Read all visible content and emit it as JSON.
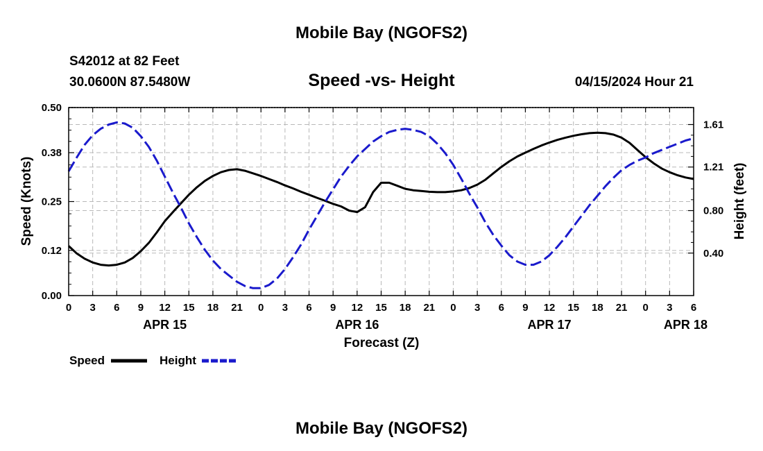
{
  "page": {
    "title": "Mobile Bay (NGOFS2)",
    "footer_title": "Mobile Bay (NGOFS2)",
    "station_line": "S42012 at 82 Feet",
    "coords_line": "30.0600N  87.5480W",
    "datetime_line": "04/15/2024 Hour 21"
  },
  "chart_data": {
    "type": "line",
    "title": "Speed -vs- Height",
    "xlabel": "Forecast (Z)",
    "ylabel_left": "Speed (Knots)",
    "ylabel_right": "Height (feet)",
    "x_hours_range": [
      0,
      78
    ],
    "x_ticks": [
      {
        "h": 0,
        "label": "0"
      },
      {
        "h": 3,
        "label": "3"
      },
      {
        "h": 6,
        "label": "6"
      },
      {
        "h": 9,
        "label": "9"
      },
      {
        "h": 12,
        "label": "12"
      },
      {
        "h": 15,
        "label": "15"
      },
      {
        "h": 18,
        "label": "18"
      },
      {
        "h": 21,
        "label": "21"
      },
      {
        "h": 24,
        "label": "0"
      },
      {
        "h": 27,
        "label": "3"
      },
      {
        "h": 30,
        "label": "6"
      },
      {
        "h": 33,
        "label": "9"
      },
      {
        "h": 36,
        "label": "12"
      },
      {
        "h": 39,
        "label": "15"
      },
      {
        "h": 42,
        "label": "18"
      },
      {
        "h": 45,
        "label": "21"
      },
      {
        "h": 48,
        "label": "0"
      },
      {
        "h": 51,
        "label": "3"
      },
      {
        "h": 54,
        "label": "6"
      },
      {
        "h": 57,
        "label": "9"
      },
      {
        "h": 60,
        "label": "12"
      },
      {
        "h": 63,
        "label": "15"
      },
      {
        "h": 66,
        "label": "18"
      },
      {
        "h": 69,
        "label": "21"
      },
      {
        "h": 72,
        "label": "0"
      },
      {
        "h": 75,
        "label": "3"
      },
      {
        "h": 78,
        "label": "6"
      }
    ],
    "date_labels": [
      {
        "h": 12,
        "label": "APR 15"
      },
      {
        "h": 36,
        "label": "APR 16"
      },
      {
        "h": 60,
        "label": "APR 17"
      },
      {
        "h": 77,
        "label": "APR 18"
      }
    ],
    "y_left": {
      "range": [
        0,
        0.5
      ],
      "ticks": [
        0.0,
        0.12,
        0.25,
        0.38,
        0.5
      ],
      "tick_labels": [
        "0.00",
        "0.12",
        "0.25",
        "0.38",
        "0.50"
      ]
    },
    "y_right": {
      "range": [
        0.0,
        1.77
      ],
      "ticks": [
        0.4,
        0.8,
        1.21,
        1.61
      ],
      "tick_labels": [
        "0.40",
        "0.80",
        "1.21",
        "1.61"
      ]
    },
    "grid": true,
    "series": [
      {
        "name": "Speed",
        "color": "#000000",
        "dash": "solid",
        "axis": "left",
        "points": [
          [
            0,
            0.132
          ],
          [
            1,
            0.112
          ],
          [
            2,
            0.098
          ],
          [
            3,
            0.088
          ],
          [
            4,
            0.082
          ],
          [
            5,
            0.08
          ],
          [
            6,
            0.082
          ],
          [
            7,
            0.088
          ],
          [
            8,
            0.1
          ],
          [
            9,
            0.118
          ],
          [
            10,
            0.14
          ],
          [
            11,
            0.168
          ],
          [
            12,
            0.198
          ],
          [
            13,
            0.222
          ],
          [
            14,
            0.245
          ],
          [
            15,
            0.268
          ],
          [
            16,
            0.288
          ],
          [
            17,
            0.305
          ],
          [
            18,
            0.318
          ],
          [
            19,
            0.328
          ],
          [
            20,
            0.334
          ],
          [
            21,
            0.336
          ],
          [
            22,
            0.332
          ],
          [
            23,
            0.325
          ],
          [
            24,
            0.318
          ],
          [
            25,
            0.31
          ],
          [
            26,
            0.302
          ],
          [
            27,
            0.293
          ],
          [
            28,
            0.285
          ],
          [
            29,
            0.276
          ],
          [
            30,
            0.268
          ],
          [
            31,
            0.26
          ],
          [
            32,
            0.252
          ],
          [
            33,
            0.244
          ],
          [
            34,
            0.237
          ],
          [
            35,
            0.226
          ],
          [
            36,
            0.222
          ],
          [
            37,
            0.235
          ],
          [
            38,
            0.275
          ],
          [
            39,
            0.3
          ],
          [
            40,
            0.3
          ],
          [
            41,
            0.292
          ],
          [
            42,
            0.284
          ],
          [
            43,
            0.28
          ],
          [
            44,
            0.278
          ],
          [
            45,
            0.276
          ],
          [
            46,
            0.275
          ],
          [
            47,
            0.275
          ],
          [
            48,
            0.277
          ],
          [
            49,
            0.28
          ],
          [
            50,
            0.286
          ],
          [
            51,
            0.295
          ],
          [
            52,
            0.308
          ],
          [
            53,
            0.325
          ],
          [
            54,
            0.342
          ],
          [
            55,
            0.357
          ],
          [
            56,
            0.37
          ],
          [
            57,
            0.38
          ],
          [
            58,
            0.39
          ],
          [
            59,
            0.399
          ],
          [
            60,
            0.407
          ],
          [
            61,
            0.414
          ],
          [
            62,
            0.42
          ],
          [
            63,
            0.425
          ],
          [
            64,
            0.429
          ],
          [
            65,
            0.432
          ],
          [
            66,
            0.433
          ],
          [
            67,
            0.432
          ],
          [
            68,
            0.428
          ],
          [
            69,
            0.42
          ],
          [
            70,
            0.406
          ],
          [
            71,
            0.387
          ],
          [
            72,
            0.368
          ],
          [
            73,
            0.352
          ],
          [
            74,
            0.338
          ],
          [
            75,
            0.328
          ],
          [
            76,
            0.32
          ],
          [
            77,
            0.314
          ],
          [
            78,
            0.31
          ]
        ]
      },
      {
        "name": "Height",
        "color": "#1a1acc",
        "dash": "dashed",
        "axis": "right",
        "points": [
          [
            0,
            1.17
          ],
          [
            1,
            1.3
          ],
          [
            2,
            1.42
          ],
          [
            3,
            1.51
          ],
          [
            4,
            1.57
          ],
          [
            5,
            1.61
          ],
          [
            6,
            1.63
          ],
          [
            7,
            1.62
          ],
          [
            8,
            1.58
          ],
          [
            9,
            1.5
          ],
          [
            10,
            1.4
          ],
          [
            11,
            1.27
          ],
          [
            12,
            1.12
          ],
          [
            13,
            0.97
          ],
          [
            14,
            0.83
          ],
          [
            15,
            0.68
          ],
          [
            16,
            0.55
          ],
          [
            17,
            0.43
          ],
          [
            18,
            0.33
          ],
          [
            19,
            0.25
          ],
          [
            20,
            0.19
          ],
          [
            21,
            0.13
          ],
          [
            22,
            0.09
          ],
          [
            23,
            0.07
          ],
          [
            24,
            0.07
          ],
          [
            25,
            0.1
          ],
          [
            26,
            0.16
          ],
          [
            27,
            0.25
          ],
          [
            28,
            0.36
          ],
          [
            29,
            0.48
          ],
          [
            30,
            0.62
          ],
          [
            31,
            0.75
          ],
          [
            32,
            0.88
          ],
          [
            33,
            1.0
          ],
          [
            34,
            1.12
          ],
          [
            35,
            1.22
          ],
          [
            36,
            1.31
          ],
          [
            37,
            1.38
          ],
          [
            38,
            1.45
          ],
          [
            39,
            1.5
          ],
          [
            40,
            1.54
          ],
          [
            41,
            1.56
          ],
          [
            42,
            1.57
          ],
          [
            43,
            1.56
          ],
          [
            44,
            1.54
          ],
          [
            45,
            1.5
          ],
          [
            46,
            1.43
          ],
          [
            47,
            1.34
          ],
          [
            48,
            1.23
          ],
          [
            49,
            1.1
          ],
          [
            50,
            0.96
          ],
          [
            51,
            0.83
          ],
          [
            52,
            0.69
          ],
          [
            53,
            0.57
          ],
          [
            54,
            0.47
          ],
          [
            55,
            0.38
          ],
          [
            56,
            0.32
          ],
          [
            57,
            0.29
          ],
          [
            58,
            0.29
          ],
          [
            59,
            0.32
          ],
          [
            60,
            0.38
          ],
          [
            61,
            0.46
          ],
          [
            62,
            0.55
          ],
          [
            63,
            0.65
          ],
          [
            64,
            0.75
          ],
          [
            65,
            0.85
          ],
          [
            66,
            0.94
          ],
          [
            67,
            1.03
          ],
          [
            68,
            1.11
          ],
          [
            69,
            1.18
          ],
          [
            70,
            1.23
          ],
          [
            71,
            1.27
          ],
          [
            72,
            1.3
          ],
          [
            73,
            1.34
          ],
          [
            74,
            1.37
          ],
          [
            75,
            1.4
          ],
          [
            76,
            1.43
          ],
          [
            77,
            1.46
          ],
          [
            78,
            1.48
          ]
        ]
      }
    ],
    "legend": [
      {
        "label": "Speed",
        "color": "#000000",
        "dash": "solid"
      },
      {
        "label": "Height",
        "color": "#1a1acc",
        "dash": "dashed"
      }
    ]
  }
}
